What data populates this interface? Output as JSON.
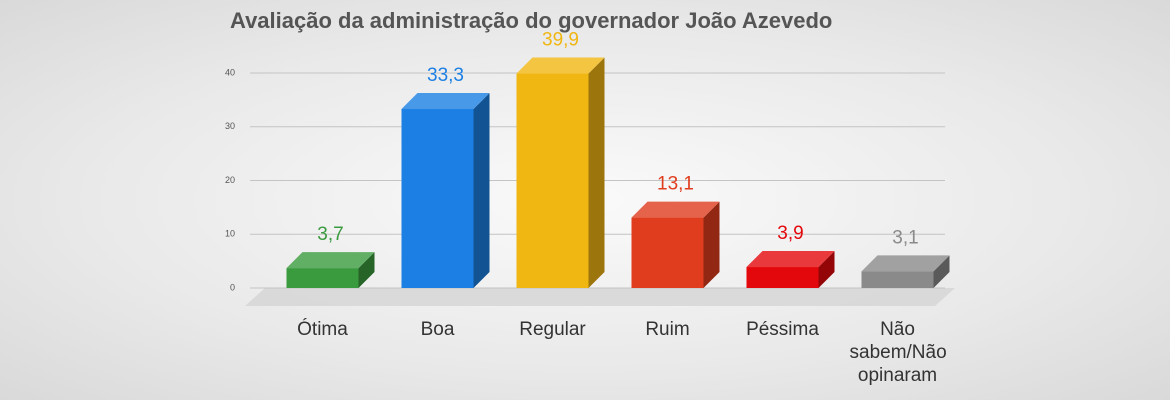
{
  "chart_data": {
    "type": "bar3d",
    "title": "Avaliação da administração do governador João Azevedo",
    "categories": [
      "Ótima",
      "Boa",
      "Regular",
      "Ruim",
      "Péssima",
      "Não sabem/Não opinaram"
    ],
    "values": [
      3.7,
      33.3,
      39.9,
      13.1,
      3.9,
      3.1
    ],
    "value_labels": [
      "3,7",
      "33,3",
      "39,9",
      "13,1",
      "3,9",
      "3,1"
    ],
    "colors": [
      "#3a9a3e",
      "#1b7fe3",
      "#f0b612",
      "#e03c1e",
      "#e3080c",
      "#8a8a8a"
    ],
    "ylim": [
      0,
      40
    ],
    "yticks": [
      0,
      10,
      20,
      30,
      40
    ],
    "grid": true
  }
}
